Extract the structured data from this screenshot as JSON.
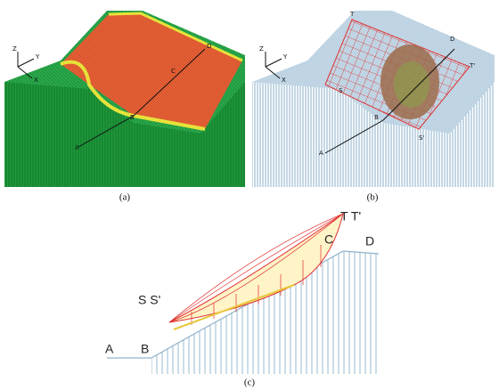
{
  "figure": {
    "panels": [
      {
        "label": "(a)",
        "axes": [
          "Z",
          "Y",
          "X"
        ],
        "points": [
          "D",
          "C",
          "B",
          "A"
        ]
      },
      {
        "label": "(b)",
        "axes": [
          "Z",
          "Y",
          "X"
        ],
        "points": [
          "T",
          "D",
          "T'",
          "S",
          "B",
          "S'",
          "A"
        ]
      },
      {
        "label": "(c)",
        "points": [
          "T T'",
          "C",
          "D",
          "S S'",
          "A",
          "B"
        ]
      }
    ]
  }
}
